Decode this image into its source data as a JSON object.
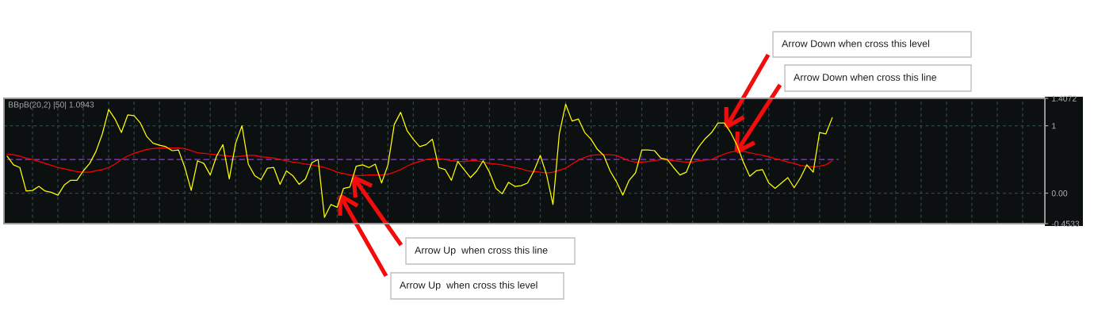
{
  "chart_data": {
    "type": "line",
    "title": "BBpB(20,2) |50| 1.0943",
    "categories": [
      null,
      null,
      null,
      null,
      null,
      null,
      null,
      null,
      null,
      null,
      null,
      null,
      null,
      null,
      null,
      null,
      null,
      null,
      null,
      null,
      null,
      null,
      null,
      null,
      null,
      null,
      null,
      null,
      null,
      null,
      null,
      null,
      null,
      null,
      null,
      null,
      null,
      null,
      null,
      null,
      null,
      null,
      null,
      null,
      null,
      null,
      null,
      null,
      null,
      null,
      null,
      null,
      null,
      null,
      null,
      null,
      null,
      null,
      null,
      null,
      null,
      null,
      null,
      null,
      null,
      null,
      null,
      null,
      null,
      null,
      null,
      null,
      null,
      null,
      null,
      null,
      null,
      null,
      null,
      null,
      null,
      null,
      null,
      null,
      null,
      null,
      null,
      null,
      null,
      null,
      null,
      null,
      null,
      null,
      null,
      null,
      null,
      null,
      null,
      null,
      null,
      null,
      null,
      null,
      null,
      null,
      null,
      null,
      null,
      null,
      null,
      null,
      null,
      null,
      null,
      null,
      null,
      null,
      null,
      null,
      null,
      null,
      null,
      null,
      null,
      null,
      null,
      null,
      null,
      null,
      null,
      null,
      null,
      null,
      null,
      null,
      null,
      null,
      null,
      null,
      null,
      null,
      null,
      null,
      null,
      null,
      null,
      null,
      null,
      null,
      null,
      null,
      null,
      null,
      null,
      null,
      null,
      null,
      null,
      null,
      null,
      null,
      null,
      null
    ],
    "series": [
      {
        "color": "#9933ee",
        "line_style": "dashed",
        "values": [
          0.5,
          0.5,
          0.5,
          0.5,
          0.5,
          0.5,
          0.5,
          0.5,
          0.5,
          0.5,
          0.5,
          0.5,
          0.5,
          0.5,
          0.5,
          0.5,
          0.5,
          0.5,
          0.5,
          0.5,
          0.5,
          0.5,
          0.5,
          0.5,
          0.5,
          0.5,
          0.5,
          0.5,
          0.5,
          0.5,
          0.5,
          0.5,
          0.5,
          0.5,
          0.5,
          0.5,
          0.5,
          0.5,
          0.5,
          0.5,
          0.5,
          0.5,
          0.5,
          0.5,
          0.5,
          0.5,
          0.5,
          0.5,
          0.5,
          0.5,
          0.5,
          0.5,
          0.5,
          0.5,
          0.5,
          0.5,
          0.5,
          0.5,
          0.5,
          0.5,
          0.5,
          0.5,
          0.5,
          0.5,
          0.5,
          0.5,
          0.5,
          0.5,
          0.5,
          0.5,
          0.5,
          0.5,
          0.5,
          0.5,
          0.5,
          0.5,
          0.5,
          0.5,
          0.5,
          0.5,
          0.5,
          0.5,
          0.5,
          0.5,
          0.5,
          0.5,
          0.5,
          0.5,
          0.5,
          0.5,
          0.5,
          0.5,
          0.5,
          0.5,
          0.5,
          0.5,
          0.5,
          0.5,
          0.5,
          0.5,
          0.5,
          0.5,
          0.5,
          0.5,
          0.5,
          0.5,
          0.5,
          0.5,
          0.5,
          0.5,
          0.5,
          0.5,
          0.5,
          0.5,
          0.5,
          0.5,
          0.5,
          0.5,
          0.5,
          0.5,
          0.5,
          0.5,
          0.5,
          0.5,
          0.5,
          0.5,
          0.5,
          0.5,
          0.5,
          0.5,
          0.5,
          0.5,
          null,
          null,
          null,
          null,
          null,
          null,
          null,
          null,
          null,
          null,
          null,
          null,
          null,
          null,
          null,
          null,
          null,
          null,
          null,
          null,
          null,
          null,
          null,
          null,
          null,
          null,
          null,
          null,
          null,
          null,
          null,
          null
        ]
      },
      {
        "color": "#ff0000",
        "values": [
          0.58,
          0.57,
          0.55,
          0.52,
          0.5,
          0.47,
          0.44,
          0.41,
          0.38,
          0.36,
          0.34,
          0.32,
          0.31,
          0.31,
          0.33,
          0.35,
          0.38,
          0.43,
          0.5,
          0.55,
          0.59,
          0.62,
          0.65,
          0.66,
          0.67,
          0.67,
          0.67,
          0.67,
          0.66,
          0.63,
          0.6,
          0.59,
          0.58,
          0.57,
          0.56,
          0.55,
          0.54,
          0.55,
          0.56,
          0.56,
          0.54,
          0.53,
          0.52,
          0.5,
          0.48,
          0.46,
          0.45,
          0.43,
          0.42,
          0.4,
          0.38,
          0.35,
          0.31,
          0.29,
          0.27,
          0.26,
          0.26,
          0.27,
          0.27,
          0.27,
          0.28,
          0.31,
          0.35,
          0.4,
          0.44,
          0.47,
          0.5,
          0.51,
          0.51,
          0.5,
          0.48,
          0.47,
          0.47,
          0.48,
          0.48,
          0.46,
          0.44,
          0.43,
          0.42,
          0.4,
          0.38,
          0.36,
          0.33,
          0.32,
          0.31,
          0.3,
          0.31,
          0.34,
          0.37,
          0.43,
          0.49,
          0.53,
          0.56,
          0.57,
          0.57,
          0.57,
          0.56,
          0.52,
          0.48,
          0.46,
          0.46,
          0.47,
          0.48,
          0.5,
          0.49,
          0.48,
          0.47,
          0.46,
          0.46,
          0.48,
          0.49,
          0.5,
          0.54,
          0.58,
          0.61,
          0.62,
          0.62,
          0.6,
          0.58,
          0.56,
          0.54,
          0.51,
          0.49,
          0.46,
          0.44,
          0.41,
          0.4,
          0.39,
          0.4,
          0.42,
          0.48,
          null,
          null,
          null,
          null,
          null,
          null,
          null,
          null,
          null,
          null,
          null,
          null,
          null,
          null,
          null,
          null,
          null,
          null,
          null,
          null,
          null,
          null,
          null,
          null,
          null,
          null,
          null,
          null,
          null,
          null,
          null,
          null,
          null
        ]
      },
      {
        "color": "#ffff00",
        "values": [
          0.55,
          0.42,
          0.38,
          0.03,
          0.04,
          0.1,
          0.03,
          0.01,
          -0.03,
          0.12,
          0.19,
          0.19,
          0.33,
          0.44,
          0.62,
          0.88,
          1.24,
          1.1,
          0.9,
          1.16,
          1.15,
          1.04,
          0.84,
          0.74,
          0.71,
          0.69,
          0.63,
          0.64,
          0.38,
          0.04,
          0.48,
          0.44,
          0.27,
          0.55,
          0.72,
          0.21,
          0.74,
          1.0,
          0.43,
          0.26,
          0.2,
          0.37,
          0.38,
          0.13,
          0.33,
          0.26,
          0.13,
          0.21,
          0.45,
          0.5,
          -0.36,
          -0.17,
          -0.21,
          0.07,
          0.09,
          0.4,
          0.42,
          0.38,
          0.43,
          0.15,
          0.42,
          1.02,
          1.2,
          0.93,
          0.8,
          0.69,
          0.72,
          0.8,
          0.38,
          0.35,
          0.19,
          0.47,
          0.35,
          0.23,
          0.33,
          0.48,
          0.31,
          0.07,
          -0.01,
          0.16,
          0.1,
          0.11,
          0.15,
          0.33,
          0.56,
          0.27,
          -0.17,
          0.88,
          1.32,
          1.07,
          1.1,
          0.9,
          0.8,
          0.65,
          0.56,
          0.33,
          0.17,
          -0.03,
          0.19,
          0.3,
          0.64,
          0.64,
          0.63,
          0.52,
          0.5,
          0.38,
          0.27,
          0.31,
          0.54,
          0.69,
          0.81,
          0.9,
          1.04,
          1.04,
          0.9,
          0.71,
          0.46,
          0.25,
          0.33,
          0.35,
          0.15,
          0.07,
          0.15,
          0.23,
          0.08,
          0.23,
          0.42,
          0.31,
          0.9,
          0.88,
          1.12,
          null,
          null,
          null,
          null,
          null,
          null,
          null,
          null,
          null,
          null,
          null,
          null,
          null,
          null,
          null,
          null,
          null,
          null,
          null,
          null,
          null,
          null,
          null,
          null,
          null,
          null,
          null,
          null,
          null,
          null,
          null,
          null,
          null
        ]
      }
    ],
    "ylim": [
      -0.4533,
      1.4072
    ],
    "yticks": [
      -0.4533,
      {
        "value": 0,
        "label": "0.00"
      },
      1,
      1.4072
    ],
    "grid": true,
    "tick_labels": "y",
    "annotations": [
      "Arrow Down when cross this level",
      "Arrow Down when cross this line",
      "Arrow Up  when cross this line",
      "Arrow Up  when cross this level"
    ]
  }
}
